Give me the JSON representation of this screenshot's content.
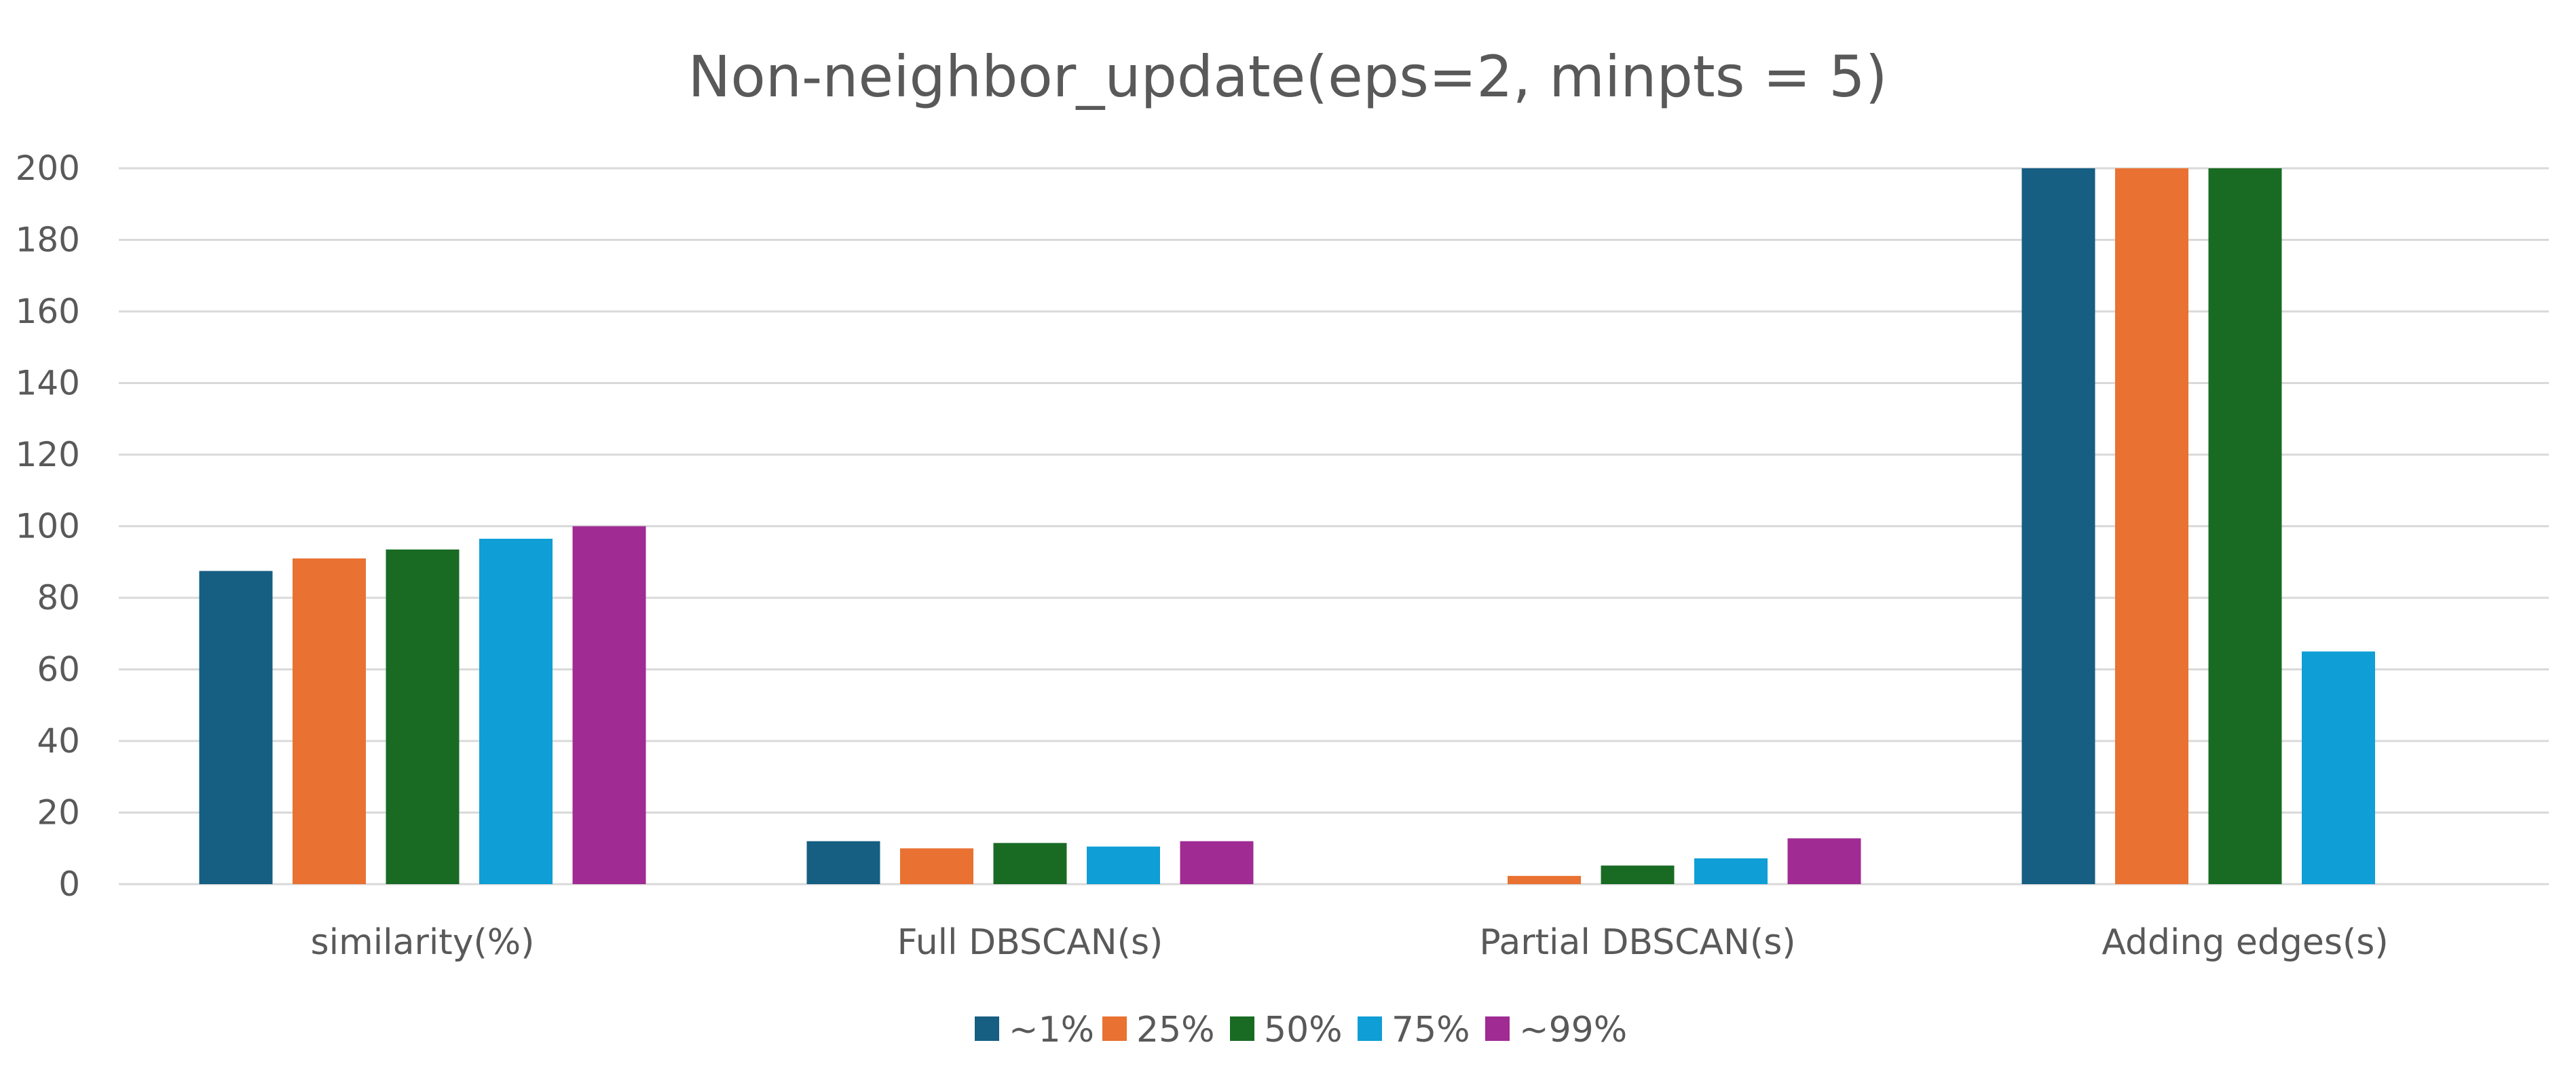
{
  "chart_data": {
    "type": "bar",
    "title": "Non-neighbor_update(eps=2, minpts = 5)",
    "xlabel": "",
    "ylabel": "",
    "ylim": [
      0,
      200
    ],
    "yticks": [
      "0",
      "20",
      "40",
      "60",
      "80",
      "100",
      "120",
      "140",
      "160",
      "180",
      "200"
    ],
    "grid": true,
    "legend_position": "bottom",
    "categories": [
      "similarity(%)",
      "Full DBSCAN(s)",
      "Partial DBSCAN(s)",
      "Adding edges(s)"
    ],
    "series": [
      {
        "name": "~1%",
        "color": "#165e82",
        "values": [
          87.5,
          12,
          0,
          200
        ]
      },
      {
        "name": "25%",
        "color": "#e97132",
        "values": [
          91,
          10,
          2.3,
          200
        ]
      },
      {
        "name": "50%",
        "color": "#196b24",
        "values": [
          93.5,
          11.5,
          5.2,
          200
        ]
      },
      {
        "name": "75%",
        "color": "#0f9ed5",
        "values": [
          96.5,
          10.5,
          7.2,
          65
        ]
      },
      {
        "name": "~99%",
        "color": "#a02b93",
        "values": [
          100,
          12,
          12.8,
          null
        ]
      }
    ]
  }
}
